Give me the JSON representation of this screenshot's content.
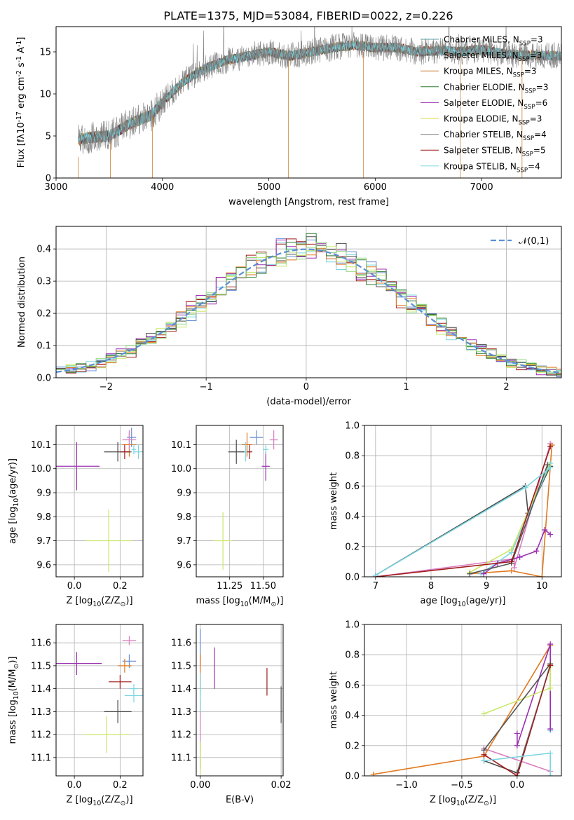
{
  "figure": {
    "title": "PLATE=1375, MJD=53084, FIBERID=0022, z=0.226"
  },
  "palette": [
    "#5f9ea0",
    "#4b4b4b",
    "#cd7f32",
    "#2f7d32",
    "#9b30b0",
    "#d9d94b",
    "#555555",
    "#a11a1a",
    "#7ad6e0",
    "#e07a20",
    "#6b8fd6",
    "#d97fbf",
    "#c8e86a",
    "#8fd67f",
    "#ffb366"
  ],
  "chart_data": [
    {
      "id": "spectrum",
      "type": "line",
      "title": "PLATE=1375, MJD=53084, FIBERID=0022, z=0.226",
      "xlabel": "wavelength [Angstrom, rest frame]",
      "ylabel": "Flux [f$\\lambda$10$^{-17}$ erg cm$^{-2}$ s$^{-1}$ A$^{-1}$]",
      "xlim": [
        3000,
        7750
      ],
      "ylim": [
        0,
        18
      ],
      "xticks": [
        3000,
        4000,
        5000,
        6000,
        7000
      ],
      "yticks": [
        0,
        5,
        10,
        15
      ],
      "grid": false,
      "legend_position": "right",
      "continuum_knots": {
        "x": [
          3210,
          3300,
          3500,
          3700,
          3900,
          4000,
          4200,
          4400,
          4600,
          4800,
          5000,
          5200,
          5400,
          5600,
          5800,
          6000,
          6200,
          6400,
          6600,
          6800,
          7000,
          7200,
          7400,
          7750
        ],
        "y": [
          4.5,
          4.8,
          5.0,
          6.5,
          7.5,
          9.0,
          11.5,
          13.0,
          14.0,
          14.5,
          15.0,
          14.5,
          15.0,
          15.5,
          15.8,
          15.5,
          15.5,
          15.0,
          15.2,
          15.0,
          15.3,
          14.8,
          14.6,
          14.5
        ]
      },
      "series": [
        {
          "name": "Chabrier MILES, N$_{SSP}$=3"
        },
        {
          "name": "Salpeter MILES, N$_{SSP}$=3"
        },
        {
          "name": "Kroupa MILES, N$_{SSP}$=3"
        },
        {
          "name": "Chabrier ELODIE, N$_{SSP}$=3"
        },
        {
          "name": "Salpeter ELODIE, N$_{SSP}$=6"
        },
        {
          "name": "Kroupa ELODIE, N$_{SSP}$=3"
        },
        {
          "name": "Chabrier STELIB, N$_{SSP}$=4"
        },
        {
          "name": "Salpeter STELIB, N$_{SSP}$=5"
        },
        {
          "name": "Kroupa STELIB, N$_{SSP}$=4"
        }
      ]
    },
    {
      "id": "residuals",
      "type": "line",
      "xlabel": "(data-model)/error",
      "ylabel": "Normed distribution",
      "xlim": [
        -2.5,
        2.55
      ],
      "ylim": [
        0,
        0.47
      ],
      "xticks": [
        -2,
        -1,
        0,
        1,
        2
      ],
      "yticks": [
        0.0,
        0.1,
        0.2,
        0.3,
        0.4
      ],
      "grid": true,
      "legend": "$\\mathcal{N}(0,1)$",
      "legend_position": "top-right",
      "bin_width": 0.1,
      "histogram_count": 9
    },
    {
      "id": "age-vs-z",
      "type": "scatter",
      "xlabel": "Z [log$_{10}$(Z/Z$_\\odot$)]",
      "ylabel": "age  [log$_{10}$(age/yr)]",
      "xlim": [
        -0.08,
        0.3
      ],
      "ylim": [
        9.55,
        10.18
      ],
      "xticks": [
        0.0,
        0.2
      ],
      "yticks": [
        9.6,
        9.7,
        9.8,
        9.9,
        10.0,
        10.1
      ],
      "grid": true,
      "points": [
        {
          "x": 0.25,
          "y": 10.13,
          "xerr": 0.02,
          "yerr": 0.04
        },
        {
          "x": 0.24,
          "y": 10.1,
          "xerr": 0.03,
          "yerr": 0.05
        },
        {
          "x": 0.24,
          "y": 10.12,
          "xerr": 0.03,
          "yerr": 0.04
        },
        {
          "x": 0.28,
          "y": 10.07,
          "xerr": 0.02,
          "yerr": 0.03
        },
        {
          "x": 0.01,
          "y": 10.01,
          "xerr": 0.1,
          "yerr": 0.1
        },
        {
          "x": 0.15,
          "y": 9.7,
          "xerr": 0.1,
          "yerr": 0.13
        },
        {
          "x": 0.19,
          "y": 10.07,
          "xerr": 0.06,
          "yerr": 0.04
        },
        {
          "x": 0.22,
          "y": 10.07,
          "xerr": 0.02,
          "yerr": 0.03
        },
        {
          "x": 0.26,
          "y": 10.08,
          "xerr": 0.01,
          "yerr": 0.02
        }
      ]
    },
    {
      "id": "age-vs-mass",
      "type": "scatter",
      "xlabel": "mass [log$_{10}$(M/M$_\\odot$)]",
      "ylabel": "",
      "xlim": [
        11.0,
        11.65
      ],
      "ylim": [
        9.55,
        10.18
      ],
      "xticks": [
        11.25,
        11.5
      ],
      "yticks": [
        9.6,
        9.7,
        9.8,
        9.9,
        10.0,
        10.1
      ],
      "grid": true,
      "points": [
        {
          "x": 11.45,
          "y": 10.13,
          "xerr": 0.05,
          "yerr": 0.03
        },
        {
          "x": 11.38,
          "y": 10.1,
          "xerr": 0.04,
          "yerr": 0.05
        },
        {
          "x": 11.58,
          "y": 10.12,
          "xerr": 0.03,
          "yerr": 0.04
        },
        {
          "x": 11.37,
          "y": 10.07,
          "xerr": 0.04,
          "yerr": 0.04
        },
        {
          "x": 11.52,
          "y": 10.01,
          "xerr": 0.03,
          "yerr": 0.06
        },
        {
          "x": 11.2,
          "y": 9.7,
          "xerr": 0.07,
          "yerr": 0.12
        },
        {
          "x": 11.3,
          "y": 10.07,
          "xerr": 0.06,
          "yerr": 0.05
        },
        {
          "x": 11.4,
          "y": 10.07,
          "xerr": 0.02,
          "yerr": 0.03
        },
        {
          "x": 11.52,
          "y": 10.08,
          "xerr": 0.02,
          "yerr": 0.02
        }
      ]
    },
    {
      "id": "weight-vs-age",
      "type": "line",
      "xlabel": "age  [log$_{10}$(age/yr)]",
      "ylabel": "mass weight",
      "xlim": [
        6.8,
        10.35
      ],
      "ylim": [
        0,
        1.0
      ],
      "xticks": [
        7,
        8,
        9,
        10
      ],
      "yticks": [
        0.0,
        0.2,
        0.4,
        0.6,
        0.8,
        1.0
      ],
      "grid": true,
      "series": [
        {
          "x": [
            7.0,
            9.7,
            9.75,
            10.15
          ],
          "y": [
            0.01,
            0.6,
            0.42,
            0.73
          ]
        },
        {
          "x": [
            7.0,
            9.5,
            9.5,
            10.15
          ],
          "y": [
            0.0,
            0.12,
            0.06,
            0.88
          ]
        },
        {
          "x": [
            8.7,
            9.45,
            10.0,
            10.18
          ],
          "y": [
            0.02,
            0.04,
            0.0,
            0.87
          ]
        },
        {
          "x": [
            8.9,
            9.45,
            10.15
          ],
          "y": [
            0.02,
            0.16,
            0.75
          ]
        },
        {
          "x": [
            8.95,
            9.2,
            9.6,
            9.9,
            10.05,
            10.15
          ],
          "y": [
            0.02,
            0.09,
            0.13,
            0.17,
            0.31,
            0.28
          ]
        },
        {
          "x": [
            8.7,
            9.45,
            10.12
          ],
          "y": [
            0.03,
            0.18,
            0.74
          ]
        },
        {
          "x": [
            8.7,
            9.45,
            10.1
          ],
          "y": [
            0.02,
            0.09,
            0.74
          ]
        },
        {
          "x": [
            7.0,
            9.45,
            10.15
          ],
          "y": [
            0.0,
            0.1,
            0.86
          ]
        },
        {
          "x": [
            7.0,
            9.7,
            10.15
          ],
          "y": [
            0.01,
            0.59,
            0.72
          ]
        }
      ]
    },
    {
      "id": "mass-vs-z",
      "type": "scatter",
      "xlabel": "Z [log$_{10}$(Z/Z$_\\odot$)]",
      "ylabel": "mass [log$_{10}$(M/M$_\\odot$)]",
      "xlim": [
        -0.08,
        0.3
      ],
      "ylim": [
        11.02,
        11.68
      ],
      "xticks": [
        0.0,
        0.2
      ],
      "yticks": [
        11.1,
        11.2,
        11.3,
        11.4,
        11.5,
        11.6
      ],
      "grid": true,
      "points": [
        {
          "x": 0.24,
          "y": 11.52,
          "xerr": 0.03,
          "yerr": 0.03
        },
        {
          "x": 0.22,
          "y": 11.5,
          "xerr": 0.03,
          "yerr": 0.03
        },
        {
          "x": 0.24,
          "y": 11.61,
          "xerr": 0.03,
          "yerr": 0.02
        },
        {
          "x": 0.26,
          "y": 11.37,
          "xerr": 0.04,
          "yerr": 0.03
        },
        {
          "x": 0.01,
          "y": 11.51,
          "xerr": 0.11,
          "yerr": 0.05
        },
        {
          "x": 0.14,
          "y": 11.2,
          "xerr": 0.1,
          "yerr": 0.08
        },
        {
          "x": 0.19,
          "y": 11.3,
          "xerr": 0.06,
          "yerr": 0.05
        },
        {
          "x": 0.2,
          "y": 11.43,
          "xerr": 0.05,
          "yerr": 0.03
        },
        {
          "x": 0.26,
          "y": 11.4,
          "xerr": 0.02,
          "yerr": 0.02
        }
      ]
    },
    {
      "id": "mass-vs-ebv",
      "type": "scatter",
      "xlabel": "E(B-V)",
      "ylabel": "",
      "xlim": [
        -0.001,
        0.0205
      ],
      "ylim": [
        11.02,
        11.68
      ],
      "xticks": [
        0.0,
        0.02
      ],
      "yticks": [
        11.1,
        11.2,
        11.3,
        11.4,
        11.5,
        11.6
      ],
      "grid": true,
      "points": [
        {
          "x": 0.0,
          "y": 11.58,
          "xerr": 0.0,
          "yerr": 0.08
        },
        {
          "x": 0.0,
          "y": 11.47,
          "xerr": 0.0,
          "yerr": 0.08
        },
        {
          "x": 0.0,
          "y": 11.2,
          "xerr": 0.0,
          "yerr": 0.15
        },
        {
          "x": 0.0,
          "y": 11.42,
          "xerr": 0.0,
          "yerr": 0.05
        },
        {
          "x": 0.0035,
          "y": 11.49,
          "xerr": 0.0,
          "yerr": 0.09
        },
        {
          "x": 0.0,
          "y": 11.1,
          "xerr": 0.0,
          "yerr": 0.07
        },
        {
          "x": 0.02,
          "y": 11.33,
          "xerr": 0.0,
          "yerr": 0.08
        },
        {
          "x": 0.0165,
          "y": 11.43,
          "xerr": 0.0,
          "yerr": 0.06
        },
        {
          "x": 0.0,
          "y": 11.35,
          "xerr": 0.0,
          "yerr": 0.05
        }
      ]
    },
    {
      "id": "weight-vs-z",
      "type": "line",
      "xlabel": "Z [log$_{10}$(Z/Z$_\\odot$)]",
      "ylabel": "mass weight",
      "xlim": [
        -1.38,
        0.4
      ],
      "ylim": [
        0,
        1.0
      ],
      "xticks": [
        -1.0,
        -0.5,
        0.0
      ],
      "yticks": [
        0.0,
        0.2,
        0.4,
        0.6,
        0.8,
        1.0
      ],
      "grid": true,
      "series": [
        {
          "x": [
            -0.3,
            0.0,
            0.3
          ],
          "y": [
            0.1,
            0.02,
            0.73
          ]
        },
        {
          "x": [
            -0.3,
            0.3
          ],
          "y": [
            0.18,
            0.03
          ]
        },
        {
          "x": [
            -1.3,
            -0.3,
            0.3
          ],
          "y": [
            0.01,
            0.13,
            0.86
          ]
        },
        {
          "x": [
            0.0,
            0.3,
            0.3
          ],
          "y": [
            0.0,
            0.74,
            0.3
          ]
        },
        {
          "x": [
            0.0,
            0.0,
            0.3,
            0.3
          ],
          "y": [
            0.28,
            0.2,
            0.87,
            0.31
          ]
        },
        {
          "x": [
            -0.3,
            0.3,
            0.3
          ],
          "y": [
            0.41,
            0.58,
            0.72
          ]
        },
        {
          "x": [
            -0.3,
            0.3
          ],
          "y": [
            0.17,
            0.74
          ]
        },
        {
          "x": [
            -0.3,
            0.0,
            0.3
          ],
          "y": [
            0.14,
            0.0,
            0.73
          ]
        },
        {
          "x": [
            -0.3,
            0.3,
            0.3
          ],
          "y": [
            0.1,
            0.15,
            0.0
          ]
        }
      ]
    }
  ]
}
